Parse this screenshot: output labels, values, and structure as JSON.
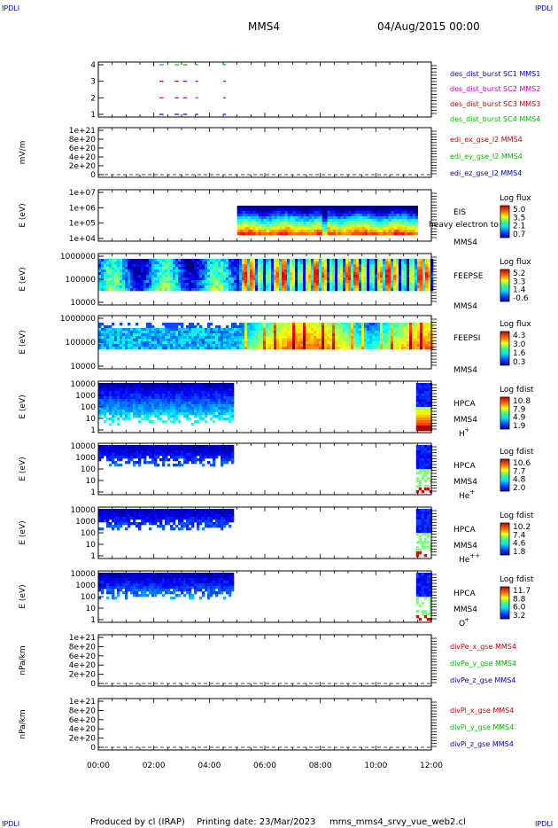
{
  "header": {
    "corner_tl": "IPDLI",
    "corner_tr": "IPDLI",
    "corner_bl": "IPDLI",
    "corner_br": "IPDLI",
    "spacecraft": "MMS4",
    "datetime": "04/Aug/2015 00:00"
  },
  "footer": {
    "produced_by": "Produced by cl (IRAP)",
    "printing_date": "Printing date: 23/Mar/2023",
    "script_name": "mms_mms4_srvy_vue_web2.cl"
  },
  "colors": {
    "sc1": "#0000cc",
    "sc2": "#cc00cc",
    "sc3": "#cc0000",
    "sc4": "#00bb00",
    "x": "#cc0000",
    "y": "#00bb00",
    "z": "#0000cc"
  },
  "chart_data": [
    {
      "id": "burst",
      "type": "scatter",
      "yticks": [
        "1",
        "2",
        "3",
        "4"
      ],
      "ylim": [
        0.5,
        4.5
      ],
      "legend": [
        "des_dist_burst SC1 MMS1",
        "des_dist_burst SC2 MMS2",
        "des_dist_burst SC3 MMS3",
        "des_dist_burst SC4 MMS4"
      ],
      "legend_colors": [
        "#0000cc",
        "#cc00cc",
        "#cc0000",
        "#00bb00"
      ],
      "segments_hours": [
        [
          2.2,
          2.35
        ],
        [
          2.75,
          2.9
        ],
        [
          3.05,
          3.2
        ],
        [
          3.5,
          3.6
        ],
        [
          4.5,
          4.6
        ]
      ],
      "levels": [
        1,
        2,
        3,
        4
      ]
    },
    {
      "id": "edi",
      "type": "line",
      "ylabel": "mV/m",
      "yticks": [
        "0",
        "2e+20",
        "4e+20",
        "6e+20",
        "8e+20",
        "1e+21"
      ],
      "ylim": [
        0,
        1e+21
      ],
      "legend": [
        "edi_ex_gse_l2 MMS4",
        "edi_ey_gse_l2 MMS4",
        "edi_ez_gse_l2 MMS4"
      ],
      "legend_colors": [
        "#cc0000",
        "#00bb00",
        "#0000cc"
      ]
    },
    {
      "id": "eis",
      "type": "heatmap",
      "ylabel": "E (eV)",
      "yticks": [
        "1e+04",
        "1e+05",
        "1e+06",
        "1e+07"
      ],
      "instrument": "EIS",
      "instrument_sub": "heavy electron to",
      "spacecraft": "MMS4",
      "cbar_title": "Log flux",
      "cbar_ticks": [
        "5.0",
        "3.5",
        "2.1",
        "0.7"
      ],
      "data_start_hour": 5.0,
      "data_end_hour": 11.5
    },
    {
      "id": "feepse",
      "type": "heatmap",
      "ylabel": "E (eV)",
      "yticks": [
        "10000",
        "100000",
        "1000000"
      ],
      "instrument": "FEEPSE",
      "spacecraft": "MMS4",
      "cbar_title": "Log flux",
      "cbar_ticks": [
        "5.2",
        "3.3",
        "1.4",
        "-0.6"
      ],
      "data_start_hour": 0.0,
      "data_end_hour": 12.0
    },
    {
      "id": "feepsi",
      "type": "heatmap",
      "ylabel": "E (eV)",
      "yticks": [
        "10000",
        "100000",
        "1000000"
      ],
      "instrument": "FEEPSI",
      "spacecraft": "MMS4",
      "cbar_title": "Log flux",
      "cbar_ticks": [
        "4.3",
        "3.0",
        "1.6",
        "0.3"
      ],
      "data_start_hour": 0.0,
      "data_end_hour": 12.0
    },
    {
      "id": "hpca_h",
      "type": "heatmap",
      "ylabel": "E (eV)",
      "yticks": [
        "1",
        "10",
        "100",
        "1000",
        "10000"
      ],
      "instrument": "HPCA",
      "spacecraft": "MMS4",
      "species": "H",
      "species_sup": "+",
      "cbar_title": "Log fdist",
      "cbar_ticks": [
        "10.8",
        "7.9",
        "4.9",
        "1.9"
      ],
      "data_ranges_hours": [
        [
          0.0,
          4.85
        ],
        [
          11.45,
          12.0
        ]
      ]
    },
    {
      "id": "hpca_he",
      "type": "heatmap",
      "ylabel": "E (eV)",
      "yticks": [
        "1",
        "10",
        "100",
        "1000",
        "10000"
      ],
      "instrument": "HPCA",
      "spacecraft": "MMS4",
      "species": "He",
      "species_sup": "+",
      "cbar_title": "Log fdist",
      "cbar_ticks": [
        "10.6",
        "7.7",
        "4.8",
        "2.0"
      ],
      "data_ranges_hours": [
        [
          0.0,
          4.85
        ],
        [
          11.45,
          12.0
        ]
      ]
    },
    {
      "id": "hpca_hepp",
      "type": "heatmap",
      "ylabel": "E (eV)",
      "yticks": [
        "1",
        "10",
        "100",
        "1000",
        "10000"
      ],
      "instrument": "HPCA",
      "spacecraft": "MMS4",
      "species": "He",
      "species_sup": "++",
      "cbar_title": "Log fdist",
      "cbar_ticks": [
        "10.2",
        "7.4",
        "4.6",
        "1.8"
      ],
      "data_ranges_hours": [
        [
          0.0,
          4.85
        ],
        [
          11.45,
          12.0
        ]
      ]
    },
    {
      "id": "hpca_o",
      "type": "heatmap",
      "ylabel": "E (eV)",
      "yticks": [
        "1",
        "10",
        "100",
        "1000",
        "10000"
      ],
      "instrument": "HPCA",
      "spacecraft": "MMS4",
      "species": "O",
      "species_sup": "+",
      "cbar_title": "Log fdist",
      "cbar_ticks": [
        "11.7",
        "8.8",
        "6.0",
        "3.2"
      ],
      "data_ranges_hours": [
        [
          0.0,
          4.85
        ],
        [
          11.45,
          12.0
        ]
      ]
    },
    {
      "id": "divpe",
      "type": "line",
      "ylabel": "nPa/km",
      "yticks": [
        "0",
        "2e+20",
        "4e+20",
        "6e+20",
        "8e+20",
        "1e+21"
      ],
      "ylim": [
        0,
        1e+21
      ],
      "legend": [
        "divPe_x_gse MMS4",
        "divPe_y_gse MMS4",
        "divPe_z_gse MMS4"
      ],
      "legend_colors": [
        "#cc0000",
        "#00bb00",
        "#0000cc"
      ]
    },
    {
      "id": "divpi",
      "type": "line",
      "ylabel": "nPa/km",
      "yticks": [
        "0",
        "2e+20",
        "4e+20",
        "6e+20",
        "8e+20",
        "1e+21"
      ],
      "ylim": [
        0,
        1e+21
      ],
      "legend": [
        "divPi_x_gse MMS4",
        "divPi_y_gse MMS4",
        "divPi_z_gse MMS4"
      ],
      "legend_colors": [
        "#cc0000",
        "#00bb00",
        "#0000cc"
      ],
      "xticks": [
        "00:00",
        "02:00",
        "04:00",
        "06:00",
        "08:00",
        "10:00",
        "12:00"
      ],
      "xlim_hours": [
        0,
        12
      ]
    }
  ]
}
